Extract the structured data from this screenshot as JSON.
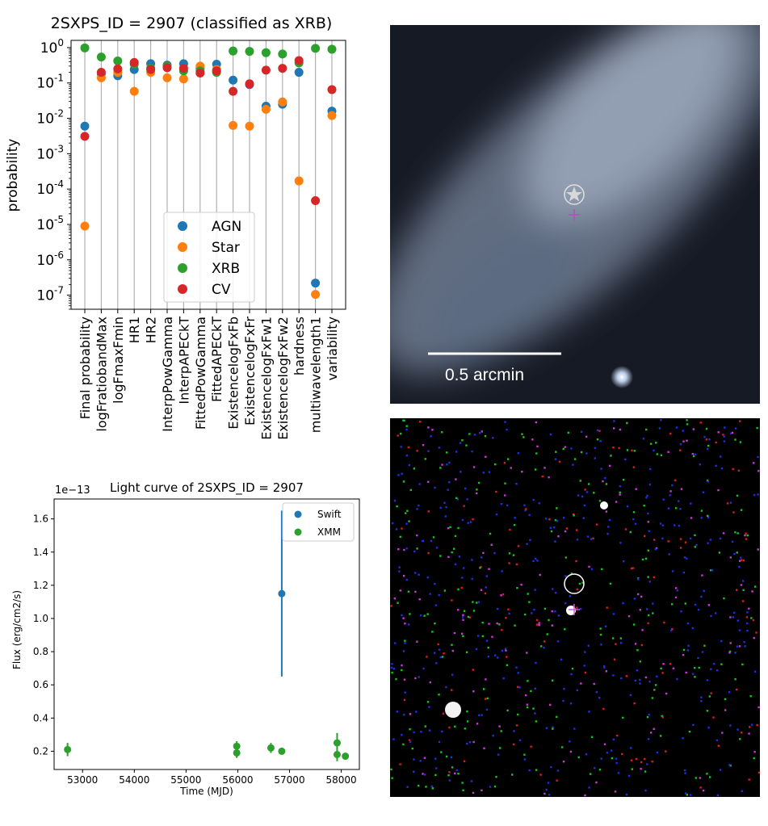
{
  "colors": {
    "AGN": "#1f77b4",
    "Star": "#ff7f0e",
    "XRB": "#2ca02c",
    "CV": "#d62728",
    "grid": "#b0b0b0"
  },
  "chart_data": [
    {
      "type": "scatter",
      "title": "2SXPS_ID = 2907 (classified as XRB)",
      "ylabel": "probability",
      "yscale": "log",
      "ylim": [
        4e-08,
        1.6
      ],
      "yticks": [
        "10^0",
        "10^-1",
        "10^-2",
        "10^-3",
        "10^-4",
        "10^-5",
        "10^-6",
        "10^-7"
      ],
      "ytick_values": [
        1,
        0.1,
        0.01,
        0.001,
        0.0001,
        1e-05,
        1e-06,
        1e-07
      ],
      "grid": "vertical",
      "legend_position": "lower-center",
      "categories": [
        "Final probability",
        "logFratiobandMax",
        "logFmaxFmin",
        "HR1",
        "HR2",
        "InterpPowGamma",
        "InterpAPECkT",
        "FittedPowGamma",
        "FittedAPECkT",
        "ExistencelogFxFb",
        "ExistencelogFxFr",
        "ExistencelogFxFw1",
        "ExistencelogFxFw2",
        "hardness",
        "multiwavelength1",
        "variability"
      ],
      "series": [
        {
          "name": "AGN",
          "values": [
            0.006,
            0.18,
            0.16,
            0.24,
            0.35,
            0.32,
            0.35,
            0.26,
            0.34,
            0.12,
            0.09,
            0.022,
            0.025,
            0.2,
            2.2e-07,
            0.016
          ]
        },
        {
          "name": "Star",
          "values": [
            9e-06,
            0.14,
            0.2,
            0.058,
            0.2,
            0.14,
            0.13,
            0.3,
            0.24,
            0.0063,
            0.006,
            0.018,
            0.029,
            0.00017,
            1.05e-07,
            0.012
          ]
        },
        {
          "name": "XRB",
          "values": [
            0.98,
            0.54,
            0.42,
            0.34,
            0.26,
            0.3,
            0.22,
            0.22,
            0.2,
            0.8,
            0.78,
            0.72,
            0.66,
            0.37,
            0.95,
            0.9
          ]
        },
        {
          "name": "CV",
          "values": [
            0.0031,
            0.2,
            0.25,
            0.38,
            0.24,
            0.27,
            0.26,
            0.19,
            0.22,
            0.058,
            0.095,
            0.23,
            0.26,
            0.43,
            4.7e-05,
            0.065
          ]
        }
      ]
    },
    {
      "type": "scatter",
      "title": "Light curve of 2SXPS_ID = 2907",
      "xlabel": "Time (MJD)",
      "ylabel": "Flux (erg/cm2/s)",
      "offset_text": "1e−13",
      "xlim": [
        52450,
        58350
      ],
      "ylim": [
        0.09,
        1.72
      ],
      "xticks": [
        53000,
        54000,
        55000,
        56000,
        57000,
        58000
      ],
      "yticks": [
        0.2,
        0.4,
        0.6,
        0.8,
        1.0,
        1.2,
        1.4,
        1.6
      ],
      "ytick_labels": [
        "0.2",
        "0.4",
        "0.6",
        "0.8",
        "1.0",
        "1.2",
        "1.4",
        "1.6"
      ],
      "legend_position": "top-right",
      "series": [
        {
          "name": "Swift",
          "x": [
            56850
          ],
          "y": [
            1.15
          ],
          "yerr": [
            0.5
          ]
        },
        {
          "name": "XMM",
          "x": [
            52710,
            55980,
            55980,
            56640,
            56850,
            57920,
            57920,
            58080
          ],
          "y": [
            0.21,
            0.23,
            0.19,
            0.22,
            0.2,
            0.25,
            0.18,
            0.17
          ],
          "yerr": [
            0.04,
            0.03,
            0.03,
            0.03,
            0.02,
            0.06,
            0.04,
            0.02
          ]
        }
      ]
    }
  ],
  "optical_image": {
    "scale_label": "0.5 arcmin"
  }
}
